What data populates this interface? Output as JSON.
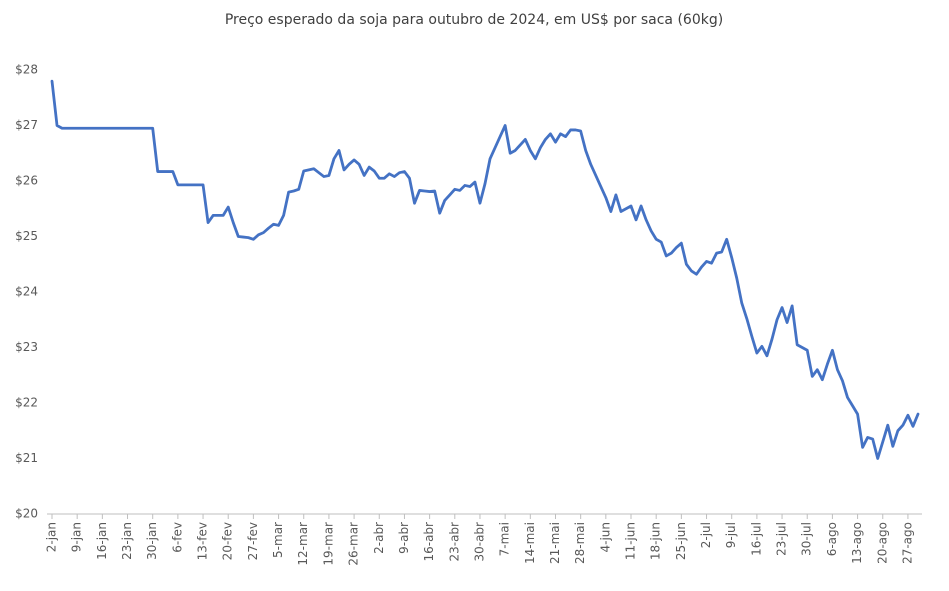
{
  "chart_data": {
    "type": "line",
    "title": "Preço esperado da soja para outubro de 2024, em US$ por saca (60kg)",
    "categories": [
      "2-jan",
      null,
      null,
      null,
      null,
      "9-jan",
      null,
      null,
      null,
      null,
      "16-jan",
      null,
      null,
      null,
      null,
      "23-jan",
      null,
      null,
      null,
      null,
      "30-jan",
      null,
      null,
      null,
      null,
      "6-fev",
      null,
      null,
      null,
      null,
      "13-fev",
      null,
      null,
      null,
      null,
      "20-fev",
      null,
      null,
      null,
      null,
      "27-fev",
      null,
      null,
      null,
      null,
      "5-mar",
      null,
      null,
      null,
      null,
      "12-mar",
      null,
      null,
      null,
      null,
      "19-mar",
      null,
      null,
      null,
      null,
      "26-mar",
      null,
      null,
      null,
      null,
      "2-abr",
      null,
      null,
      null,
      null,
      "9-abr",
      null,
      null,
      null,
      null,
      "16-abr",
      null,
      null,
      null,
      null,
      "23-abr",
      null,
      null,
      null,
      null,
      "30-abr",
      null,
      null,
      null,
      null,
      "7-mai",
      null,
      null,
      null,
      null,
      "14-mai",
      null,
      null,
      null,
      null,
      "21-mai",
      null,
      null,
      null,
      null,
      "28-mai",
      null,
      null,
      null,
      null,
      "4-jun",
      null,
      null,
      null,
      null,
      "11-jun",
      null,
      null,
      null,
      null,
      "18-jun",
      null,
      null,
      null,
      null,
      "25-jun",
      null,
      null,
      null,
      null,
      "2-jul",
      null,
      null,
      null,
      null,
      "9-jul",
      null,
      null,
      null,
      null,
      "16-jul",
      null,
      null,
      null,
      null,
      "23-jul",
      null,
      null,
      null,
      null,
      "30-jul",
      null,
      null,
      null,
      null,
      "6-ago",
      null,
      null,
      null,
      null,
      "13-ago",
      null,
      null,
      null,
      null,
      "20-ago",
      null,
      null,
      null,
      null,
      "27-ago",
      null,
      null
    ],
    "values": [
      27.8,
      27.0,
      26.95,
      26.95,
      26.95,
      26.95,
      26.95,
      26.95,
      26.95,
      26.95,
      26.95,
      26.95,
      26.95,
      26.95,
      26.95,
      26.95,
      26.95,
      26.95,
      26.95,
      26.95,
      26.95,
      26.17,
      26.17,
      26.17,
      26.17,
      25.93,
      25.93,
      25.93,
      25.93,
      25.93,
      25.93,
      25.25,
      25.38,
      25.38,
      25.38,
      25.53,
      25.25,
      25.0,
      24.99,
      24.98,
      24.95,
      25.03,
      25.07,
      25.15,
      25.22,
      25.2,
      25.38,
      25.8,
      25.82,
      25.85,
      26.18,
      26.2,
      26.22,
      26.15,
      26.08,
      26.1,
      26.4,
      26.55,
      26.2,
      26.3,
      26.38,
      26.3,
      26.1,
      26.25,
      26.18,
      26.05,
      26.05,
      26.13,
      26.08,
      26.15,
      26.17,
      26.05,
      25.6,
      25.83,
      25.82,
      25.81,
      25.82,
      25.42,
      25.65,
      25.75,
      25.85,
      25.83,
      25.92,
      25.9,
      25.98,
      25.6,
      25.95,
      26.4,
      26.6,
      26.8,
      27.0,
      26.5,
      26.55,
      26.65,
      26.75,
      26.55,
      26.4,
      26.6,
      26.75,
      26.85,
      26.7,
      26.85,
      26.8,
      26.92,
      26.92,
      26.9,
      26.55,
      26.3,
      26.1,
      25.9,
      25.7,
      25.45,
      25.75,
      25.45,
      25.5,
      25.55,
      25.3,
      25.55,
      25.3,
      25.1,
      24.95,
      24.9,
      24.65,
      24.7,
      24.8,
      24.88,
      24.5,
      24.38,
      24.32,
      24.45,
      24.55,
      24.52,
      24.7,
      24.72,
      24.95,
      24.62,
      24.25,
      23.8,
      23.52,
      23.2,
      22.9,
      23.02,
      22.85,
      23.15,
      23.5,
      23.72,
      23.45,
      23.75,
      23.05,
      23.0,
      22.95,
      22.48,
      22.6,
      22.42,
      22.7,
      22.95,
      22.6,
      22.4,
      22.1,
      21.95,
      21.8,
      21.2,
      21.38,
      21.35,
      21.0,
      21.3,
      21.6,
      21.22,
      21.5,
      21.6,
      21.78,
      21.58,
      21.8
    ],
    "color": "#4472c4",
    "ylim": [
      20,
      28
    ],
    "yticks": [
      {
        "value": 20,
        "label": "$20"
      },
      {
        "value": 21,
        "label": "$21"
      },
      {
        "value": 22,
        "label": "$22"
      },
      {
        "value": 23,
        "label": "$23"
      },
      {
        "value": 24,
        "label": "$24"
      },
      {
        "value": 25,
        "label": "$25"
      },
      {
        "value": 26,
        "label": "$26"
      },
      {
        "value": 27,
        "label": "$27"
      },
      {
        "value": 28,
        "label": "$28"
      }
    ],
    "grid": false
  }
}
